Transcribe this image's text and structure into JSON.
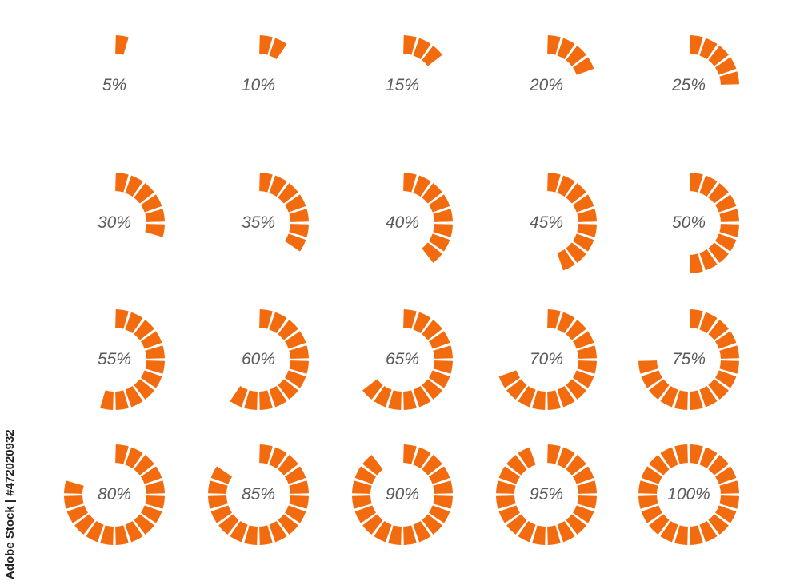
{
  "colors": {
    "segment": "#f26b0f",
    "label": "#5a5a5a",
    "background": "#ffffff"
  },
  "segments_per_ring": 20,
  "indicators": [
    {
      "label": "5%",
      "percent": 5
    },
    {
      "label": "10%",
      "percent": 10
    },
    {
      "label": "15%",
      "percent": 15
    },
    {
      "label": "20%",
      "percent": 20
    },
    {
      "label": "25%",
      "percent": 25
    },
    {
      "label": "30%",
      "percent": 30
    },
    {
      "label": "35%",
      "percent": 35
    },
    {
      "label": "40%",
      "percent": 40
    },
    {
      "label": "45%",
      "percent": 45
    },
    {
      "label": "50%",
      "percent": 50
    },
    {
      "label": "55%",
      "percent": 55
    },
    {
      "label": "60%",
      "percent": 60
    },
    {
      "label": "65%",
      "percent": 65
    },
    {
      "label": "70%",
      "percent": 70
    },
    {
      "label": "75%",
      "percent": 75
    },
    {
      "label": "80%",
      "percent": 80
    },
    {
      "label": "85%",
      "percent": 85
    },
    {
      "label": "90%",
      "percent": 90
    },
    {
      "label": "95%",
      "percent": 95
    },
    {
      "label": "100%",
      "percent": 100
    }
  ],
  "side_text": "Adobe Stock | #472020932"
}
